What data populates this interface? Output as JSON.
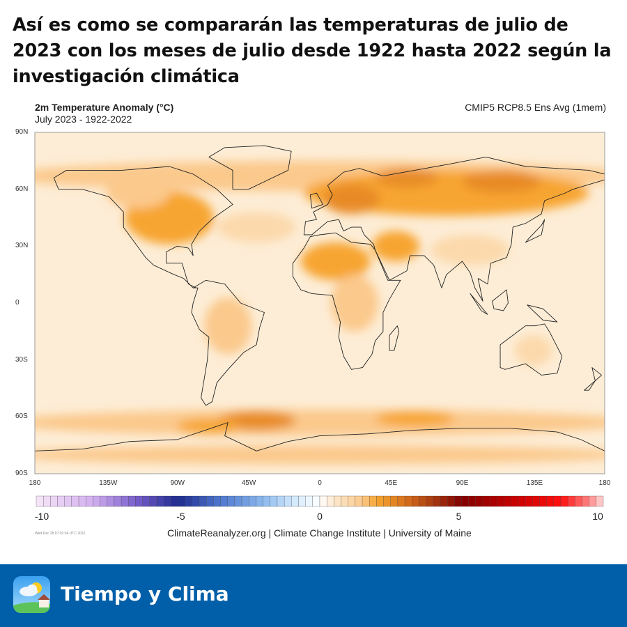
{
  "headline": "Así es como se compararán las temperaturas de julio de 2023 con los meses de julio desde 1922 hasta 2022 según la investigación climática",
  "map": {
    "title": "2m Temperature Anomaly (°C)",
    "subtitle": "July 2023 - 1922-2022",
    "model": "CMIP5 RCP8.5 Ens Avg (1mem)",
    "lat_ticks": [
      "90N",
      "60N",
      "30N",
      "0",
      "30S",
      "60S",
      "90S"
    ],
    "lat_values": [
      90,
      60,
      30,
      0,
      -30,
      -60,
      -90
    ],
    "lon_ticks": [
      "180",
      "135W",
      "90W",
      "45W",
      "0",
      "45E",
      "90E",
      "135E",
      "180"
    ],
    "lon_values": [
      -180,
      -135,
      -90,
      -45,
      0,
      45,
      90,
      135,
      180
    ],
    "projection": "equirectangular",
    "background_anomaly": 0.4,
    "anomaly_regions": [
      {
        "region": "Arctic band",
        "lon": 0,
        "lat": 67,
        "rlon": 200,
        "rlat": 8,
        "value": 1.5
      },
      {
        "region": "Northern Eurasia",
        "lon": 80,
        "lat": 58,
        "rlon": 90,
        "rlat": 12,
        "value": 2.0
      },
      {
        "region": "Europe",
        "lon": 20,
        "lat": 55,
        "rlon": 18,
        "rlat": 8,
        "value": 2.5
      },
      {
        "region": "Russia",
        "lon": 55,
        "lat": 66,
        "rlon": 20,
        "rlat": 5,
        "value": 2.5
      },
      {
        "region": "Siberia",
        "lon": 115,
        "lat": 64,
        "rlon": 25,
        "rlat": 6,
        "value": 2.5
      },
      {
        "region": "North America",
        "lon": -95,
        "lat": 45,
        "rlon": 28,
        "rlat": 14,
        "value": 2.0
      },
      {
        "region": "Canada",
        "lon": -115,
        "lat": 58,
        "rlon": 20,
        "rlat": 8,
        "value": 1.5
      },
      {
        "region": "North Atlantic",
        "lon": -40,
        "lat": 40,
        "rlon": 25,
        "rlat": 8,
        "value": 1.0
      },
      {
        "region": "Sahara",
        "lon": 10,
        "lat": 22,
        "rlon": 22,
        "rlat": 10,
        "value": 2.0
      },
      {
        "region": "Middle East",
        "lon": 48,
        "lat": 30,
        "rlon": 15,
        "rlat": 8,
        "value": 2.0
      },
      {
        "region": "Central Africa",
        "lon": 22,
        "lat": 0,
        "rlon": 15,
        "rlat": 15,
        "value": 1.5
      },
      {
        "region": "South America",
        "lon": -58,
        "lat": -12,
        "rlon": 15,
        "rlat": 15,
        "value": 1.5
      },
      {
        "region": "Asia south",
        "lon": 95,
        "lat": 28,
        "rlon": 25,
        "rlat": 8,
        "value": 1.0
      },
      {
        "region": "Australia",
        "lon": 135,
        "lat": -25,
        "rlon": 12,
        "rlat": 8,
        "value": 1.0
      },
      {
        "region": "Southern ocean band",
        "lon": 0,
        "lat": -63,
        "rlon": 200,
        "rlat": 7,
        "value": 1.5
      },
      {
        "region": "Weddell hotspot",
        "lon": -40,
        "lat": -62,
        "rlon": 25,
        "rlat": 5,
        "value": 2.5
      },
      {
        "region": "Drake",
        "lon": -70,
        "lat": -65,
        "rlon": 20,
        "rlat": 4,
        "value": 2.0
      },
      {
        "region": "Indian sector",
        "lon": 60,
        "lat": -61,
        "rlon": 25,
        "rlat": 4,
        "value": 2.0
      },
      {
        "region": "Antarctic interior",
        "lon": 0,
        "lat": -80,
        "rlon": 200,
        "rlat": 5,
        "value": 1.5
      }
    ]
  },
  "colorbar": {
    "min": -10,
    "max": 10,
    "step": 0.25,
    "labels": [
      "-10",
      "-5",
      "0",
      "5",
      "10"
    ],
    "label_values": [
      -10,
      -5,
      0,
      5,
      10
    ],
    "stops": [
      [
        -10,
        "#f7e6f7"
      ],
      [
        -8,
        "#d2b0f0"
      ],
      [
        -6.5,
        "#7a5fcc"
      ],
      [
        -5,
        "#1e2b8f"
      ],
      [
        -3.5,
        "#4f78cf"
      ],
      [
        -2,
        "#8cb8ee"
      ],
      [
        -1,
        "#cde6fb"
      ],
      [
        0,
        "#ffffff"
      ],
      [
        0.5,
        "#fde8cc"
      ],
      [
        1.5,
        "#fbc98c"
      ],
      [
        2,
        "#f7a530"
      ],
      [
        3,
        "#d8711c"
      ],
      [
        4,
        "#a73a10"
      ],
      [
        5,
        "#820000"
      ],
      [
        7,
        "#cc0000"
      ],
      [
        8.5,
        "#ff1010"
      ],
      [
        9.5,
        "#ff8585"
      ],
      [
        10,
        "#ffdcdc"
      ]
    ]
  },
  "timestamp": "Wed Dec 28 07:02:54 UTC 2022",
  "credit": "ClimateReanalyzer.org | Climate Change Institute | University of Maine",
  "footer": {
    "brand": "Tiempo y Clima",
    "background": "#005fa8",
    "icon": "weather-app-icon"
  }
}
